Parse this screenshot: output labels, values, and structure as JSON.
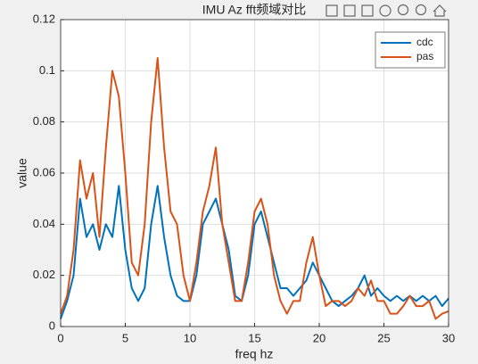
{
  "chart_data": {
    "type": "line",
    "title": "IMU Az fft频域对比",
    "xlabel": "freq hz",
    "ylabel": "value",
    "x": [
      0,
      0.5,
      1,
      1.5,
      2,
      2.5,
      3,
      3.5,
      4,
      4.5,
      5,
      5.5,
      6,
      6.5,
      7,
      7.5,
      8,
      8.5,
      9,
      9.5,
      10,
      10.5,
      11,
      11.5,
      12,
      12.5,
      13,
      13.5,
      14,
      14.5,
      15,
      15.5,
      16,
      16.5,
      17,
      17.5,
      18,
      18.5,
      19,
      19.5,
      20,
      20.5,
      21,
      21.5,
      22,
      22.5,
      23,
      23.5,
      24,
      24.5,
      25,
      25.5,
      26,
      26.5,
      27,
      27.5,
      28,
      28.5,
      29,
      29.5,
      30
    ],
    "series": [
      {
        "name": "cdc",
        "color": "#0072bd",
        "values": [
          0.003,
          0.01,
          0.02,
          0.05,
          0.035,
          0.04,
          0.03,
          0.04,
          0.035,
          0.055,
          0.03,
          0.015,
          0.01,
          0.015,
          0.04,
          0.055,
          0.035,
          0.02,
          0.012,
          0.01,
          0.01,
          0.02,
          0.04,
          0.045,
          0.05,
          0.04,
          0.03,
          0.012,
          0.01,
          0.02,
          0.04,
          0.045,
          0.035,
          0.025,
          0.015,
          0.015,
          0.012,
          0.015,
          0.018,
          0.025,
          0.02,
          0.015,
          0.01,
          0.008,
          0.01,
          0.012,
          0.015,
          0.02,
          0.012,
          0.015,
          0.012,
          0.01,
          0.012,
          0.01,
          0.012,
          0.01,
          0.012,
          0.01,
          0.012,
          0.008,
          0.011
        ]
      },
      {
        "name": "pas",
        "color": "#d95319",
        "values": [
          0.005,
          0.012,
          0.03,
          0.065,
          0.05,
          0.06,
          0.035,
          0.07,
          0.1,
          0.09,
          0.06,
          0.025,
          0.02,
          0.04,
          0.08,
          0.105,
          0.07,
          0.045,
          0.04,
          0.02,
          0.01,
          0.025,
          0.045,
          0.055,
          0.07,
          0.04,
          0.025,
          0.01,
          0.01,
          0.025,
          0.045,
          0.05,
          0.04,
          0.02,
          0.01,
          0.005,
          0.01,
          0.01,
          0.025,
          0.035,
          0.02,
          0.008,
          0.01,
          0.01,
          0.008,
          0.01,
          0.015,
          0.012,
          0.018,
          0.01,
          0.01,
          0.005,
          0.005,
          0.008,
          0.012,
          0.008,
          0.008,
          0.01,
          0.003,
          0.005,
          0.006
        ]
      }
    ],
    "xlim": [
      0,
      30
    ],
    "xticks": [
      0,
      5,
      10,
      15,
      20,
      25,
      30
    ],
    "ylim": [
      0,
      0.12
    ],
    "yticks": [
      0,
      0.02,
      0.04,
      0.06,
      0.08,
      0.1,
      0.12
    ],
    "grid": true,
    "legend": "northeast"
  }
}
